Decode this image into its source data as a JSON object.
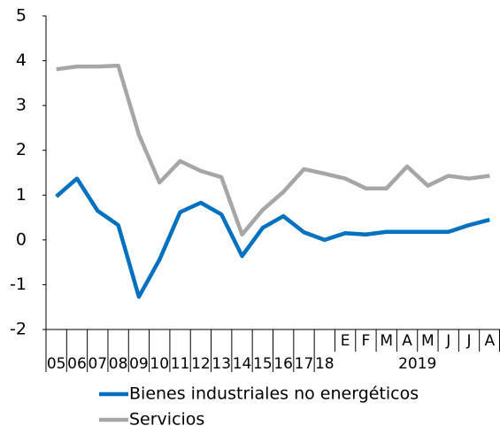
{
  "chart_data": {
    "type": "line",
    "categories": [
      "05",
      "06",
      "07",
      "08",
      "09",
      "10",
      "11",
      "12",
      "13",
      "14",
      "15",
      "16",
      "17",
      "18",
      "E",
      "F",
      "M",
      "A",
      "M",
      "J",
      "J",
      "A"
    ],
    "category_group": "2019",
    "series": [
      {
        "name": "Bienes industriales no energéticos",
        "color": "#0070c0",
        "values": [
          0.97,
          1.37,
          0.65,
          0.33,
          -1.27,
          -0.44,
          0.62,
          0.83,
          0.57,
          -0.36,
          0.27,
          0.53,
          0.17,
          0.0,
          0.15,
          0.12,
          0.18,
          0.18,
          0.18,
          0.18,
          0.33,
          0.45
        ]
      },
      {
        "name": "Servicios",
        "color": "#a6a6a6",
        "values": [
          3.81,
          3.87,
          3.87,
          3.89,
          2.35,
          1.28,
          1.76,
          1.54,
          1.4,
          0.12,
          0.67,
          1.07,
          1.58,
          1.48,
          1.37,
          1.15,
          1.15,
          1.64,
          1.21,
          1.43,
          1.37,
          1.43
        ]
      }
    ],
    "ylim": [
      -2,
      5
    ],
    "yticks": [
      -2,
      -1,
      0,
      1,
      2,
      3,
      4,
      5
    ],
    "grid": false
  }
}
